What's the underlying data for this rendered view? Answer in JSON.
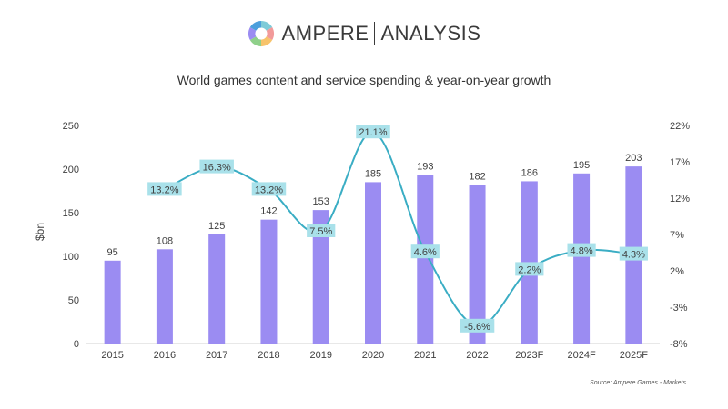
{
  "header": {
    "brand_left": "AMPERE",
    "brand_right": "ANALYSIS",
    "logo_colors": [
      "#7ecbd8",
      "#f29a9a",
      "#f7c36b",
      "#8fd08a",
      "#9b8cf2",
      "#4b9fdc"
    ]
  },
  "source": "Source: Ampere Games - Markets",
  "colors": {
    "bar": "#9b8cf2",
    "line": "#3aadc4",
    "label_bg": "#a9e1ea"
  },
  "chart_data": {
    "type": "bar",
    "title": "World games content and service spending & year-on-year growth",
    "ylabel": "$bn",
    "categories": [
      "2015",
      "2016",
      "2017",
      "2018",
      "2019",
      "2020",
      "2021",
      "2022",
      "2023F",
      "2024F",
      "2025F"
    ],
    "series": [
      {
        "type": "bar",
        "axis": "left",
        "values": [
          95,
          108,
          125,
          142,
          153,
          185,
          193,
          182,
          186,
          195,
          203
        ]
      },
      {
        "type": "line",
        "axis": "right",
        "values": [
          null,
          13.2,
          16.3,
          13.2,
          7.5,
          21.1,
          4.6,
          -5.6,
          2.2,
          4.8,
          4.3
        ],
        "labels": [
          null,
          "13.2%",
          "16.3%",
          "13.2%",
          "7.5%",
          "21.1%",
          "4.6%",
          "-5.6%",
          "2.2%",
          "4.8%",
          "4.3%"
        ]
      }
    ],
    "y_left": {
      "lim": [
        0,
        250
      ],
      "ticks": [
        0,
        50,
        100,
        150,
        200,
        250
      ]
    },
    "y_right": {
      "lim": [
        -8,
        22
      ],
      "ticks": [
        "-8%",
        "-3%",
        "2%",
        "7%",
        "12%",
        "17%",
        "22%"
      ],
      "tick_values": [
        -8,
        -3,
        2,
        7,
        12,
        17,
        22
      ]
    },
    "grid": false
  }
}
